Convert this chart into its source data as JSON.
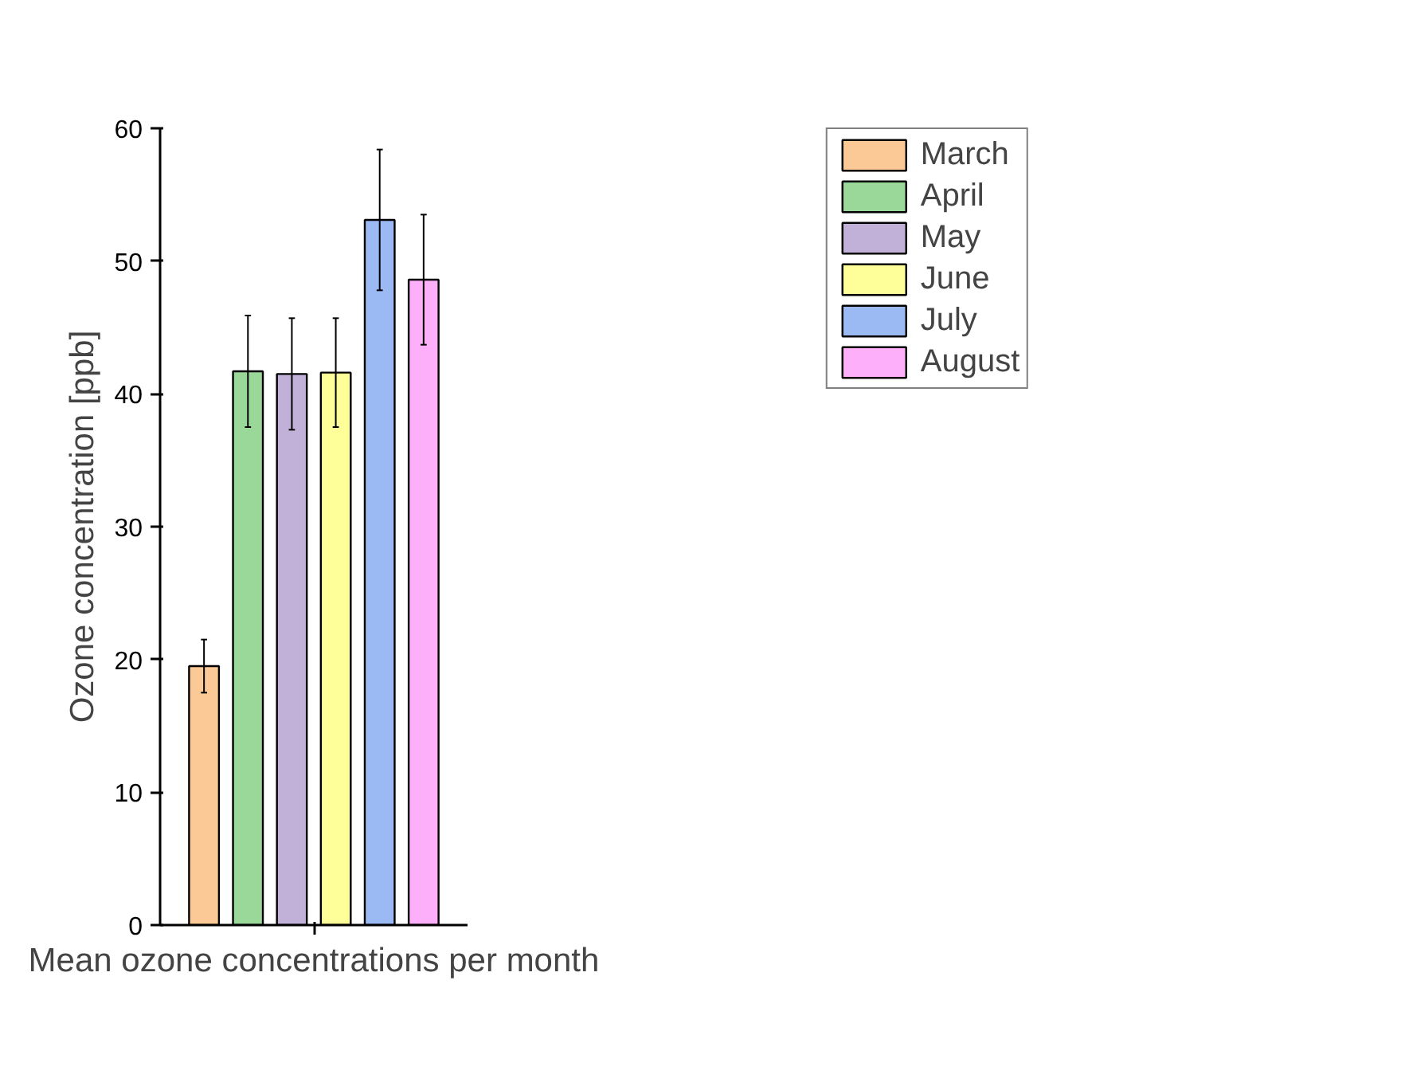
{
  "chart_data": {
    "type": "bar",
    "xlabel": "Mean ozone concentrations per month",
    "ylabel": "Ozone concentration [ppb]",
    "categories": [
      null,
      null,
      null,
      null,
      null,
      null
    ],
    "series": [
      {
        "name": "March",
        "color": "#fbc996",
        "values": [
          19.5,
          null,
          null,
          null,
          null,
          null
        ],
        "errors": [
          2.0,
          null,
          null,
          null,
          null,
          null
        ]
      },
      {
        "name": "April",
        "color": "#9ad89a",
        "values": [
          null,
          41.7,
          null,
          null,
          null,
          null
        ],
        "errors": [
          null,
          4.2,
          null,
          null,
          null,
          null
        ]
      },
      {
        "name": "May",
        "color": "#c1b1d8",
        "values": [
          null,
          null,
          41.5,
          null,
          null,
          null
        ],
        "errors": [
          null,
          null,
          4.2,
          null,
          null,
          null
        ]
      },
      {
        "name": "June",
        "color": "#ffff99",
        "values": [
          null,
          null,
          null,
          41.6,
          null,
          null
        ],
        "errors": [
          null,
          null,
          null,
          4.1,
          null,
          null
        ]
      },
      {
        "name": "July",
        "color": "#9bb9f3",
        "values": [
          null,
          null,
          null,
          null,
          53.1,
          null
        ],
        "errors": [
          null,
          null,
          null,
          null,
          5.3,
          null
        ]
      },
      {
        "name": "August",
        "color": "#fdaff9",
        "values": [
          null,
          null,
          null,
          null,
          null,
          48.6
        ],
        "errors": [
          null,
          null,
          null,
          null,
          null,
          4.9
        ]
      }
    ],
    "ylim": [
      0,
      60
    ],
    "yticks": [
      0,
      10,
      20,
      30,
      40,
      50,
      60
    ],
    "grid": false,
    "legend": "top right"
  }
}
